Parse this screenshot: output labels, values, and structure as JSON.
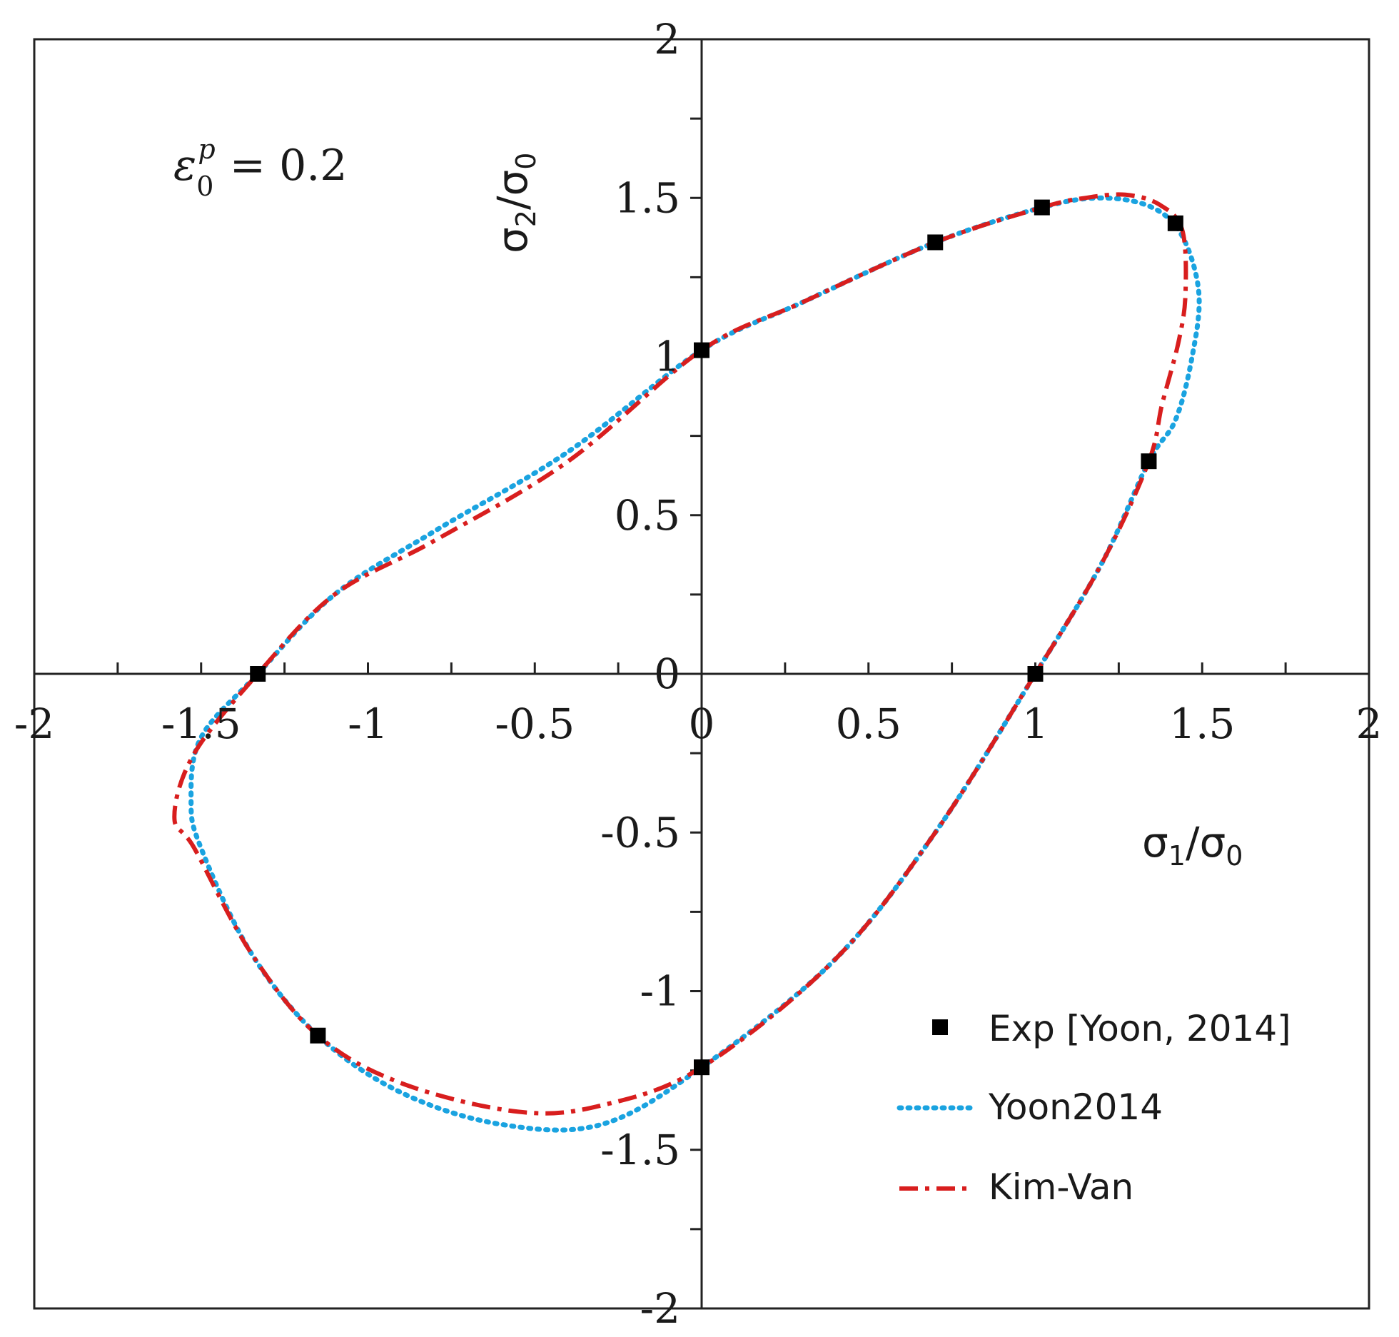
{
  "chart_data": {
    "type": "scatter",
    "title": "",
    "xlabel": "σ₁/σ₀",
    "ylabel": "σ₂/σ₀",
    "xlabel_parts": {
      "base": "σ",
      "sub": "1",
      "rest": "/σ",
      "sub2": "0"
    },
    "ylabel_parts": {
      "base": "σ",
      "sub": "2",
      "rest": "/σ",
      "sub2": "0"
    },
    "xlim": [
      -2,
      2
    ],
    "ylim": [
      -2,
      2
    ],
    "x_ticks": [
      -2,
      -1.5,
      -1,
      -0.5,
      0,
      0.5,
      1,
      1.5,
      2
    ],
    "y_ticks": [
      -2,
      -1.5,
      -1,
      -0.5,
      0,
      0.5,
      1,
      1.5,
      2
    ],
    "x_tick_labels": [
      "-2",
      "-1.5",
      "-1",
      "-0.5",
      "0",
      "0.5",
      "1",
      "1.5",
      "2"
    ],
    "y_tick_labels": [
      "-2",
      "-1.5",
      "-1",
      "-0.5",
      "0",
      "0.5",
      "1",
      "1.5",
      "2"
    ],
    "minor_tick_step": 0.25,
    "grid": false,
    "legend_position": "bottom-right",
    "annotation": {
      "symbol": "ε",
      "sub": "0",
      "sup": "p",
      "equals": "= 0.2"
    },
    "series": [
      {
        "name": "Exp [Yoon, 2014]",
        "kind": "markers",
        "color": "#000000",
        "points": [
          [
            0,
            1.02
          ],
          [
            0.7,
            1.36
          ],
          [
            1.02,
            1.47
          ],
          [
            1.42,
            1.42
          ],
          [
            1.34,
            0.67
          ],
          [
            1.0,
            0.0
          ],
          [
            0,
            -1.24
          ],
          [
            -1.15,
            -1.14
          ],
          [
            -1.33,
            0.0
          ]
        ]
      },
      {
        "name": "Yoon2014",
        "kind": "dotted",
        "color": "#1aa3e0",
        "points": [
          [
            0,
            1.02
          ],
          [
            0.3,
            1.17
          ],
          [
            0.7,
            1.36
          ],
          [
            1.02,
            1.47
          ],
          [
            1.2,
            1.5
          ],
          [
            1.35,
            1.47
          ],
          [
            1.44,
            1.38
          ],
          [
            1.49,
            1.2
          ],
          [
            1.47,
            1.0
          ],
          [
            1.42,
            0.8
          ],
          [
            1.34,
            0.67
          ],
          [
            1.2,
            0.35
          ],
          [
            1.0,
            0.0
          ],
          [
            0.7,
            -0.5
          ],
          [
            0.4,
            -0.9
          ],
          [
            0,
            -1.24
          ],
          [
            -0.3,
            -1.42
          ],
          [
            -0.6,
            -1.42
          ],
          [
            -0.9,
            -1.32
          ],
          [
            -1.15,
            -1.14
          ],
          [
            -1.35,
            -0.88
          ],
          [
            -1.5,
            -0.55
          ],
          [
            -1.53,
            -0.4
          ],
          [
            -1.5,
            -0.2
          ],
          [
            -1.33,
            0.0
          ],
          [
            -1.1,
            0.25
          ],
          [
            -0.8,
            0.45
          ],
          [
            -0.4,
            0.7
          ],
          [
            0,
            1.02
          ]
        ]
      },
      {
        "name": "Kim-Van",
        "kind": "dashdot",
        "color": "#d81e1e",
        "points": [
          [
            0,
            1.02
          ],
          [
            0.3,
            1.17
          ],
          [
            0.7,
            1.36
          ],
          [
            1.02,
            1.47
          ],
          [
            1.15,
            1.5
          ],
          [
            1.27,
            1.51
          ],
          [
            1.37,
            1.48
          ],
          [
            1.44,
            1.4
          ],
          [
            1.45,
            1.2
          ],
          [
            1.43,
            1.05
          ],
          [
            1.38,
            0.85
          ],
          [
            1.34,
            0.67
          ],
          [
            1.2,
            0.35
          ],
          [
            1.0,
            0.0
          ],
          [
            0.7,
            -0.5
          ],
          [
            0.4,
            -0.9
          ],
          [
            0,
            -1.24
          ],
          [
            -0.3,
            -1.36
          ],
          [
            -0.55,
            -1.38
          ],
          [
            -0.9,
            -1.29
          ],
          [
            -1.15,
            -1.14
          ],
          [
            -1.35,
            -0.88
          ],
          [
            -1.52,
            -0.55
          ],
          [
            -1.58,
            -0.45
          ],
          [
            -1.52,
            -0.25
          ],
          [
            -1.33,
            0.0
          ],
          [
            -1.1,
            0.25
          ],
          [
            -0.8,
            0.42
          ],
          [
            -0.4,
            0.67
          ],
          [
            0,
            1.02
          ]
        ]
      }
    ]
  }
}
